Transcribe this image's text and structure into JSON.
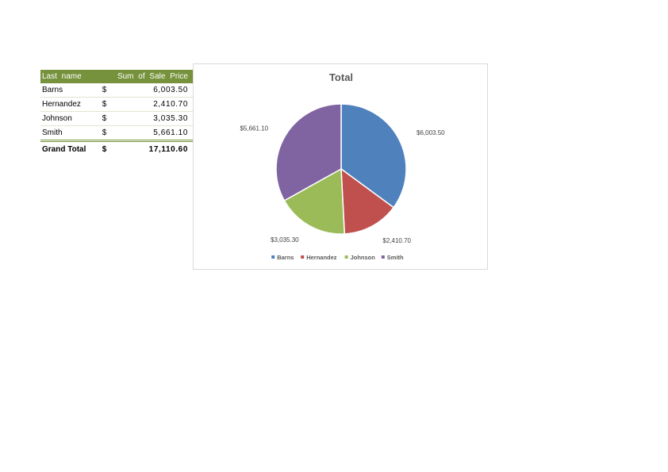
{
  "pivot_table": {
    "header_last_name": "Last name",
    "header_sum": "Sum of Sale Price",
    "rows": [
      {
        "name": "Barns",
        "currency": "$",
        "amount": "6,003.50"
      },
      {
        "name": "Hernandez",
        "currency": "$",
        "amount": "2,410.70"
      },
      {
        "name": "Johnson",
        "currency": "$",
        "amount": "3,035.30"
      },
      {
        "name": "Smith",
        "currency": "$",
        "amount": "5,661.10"
      }
    ],
    "total": {
      "label": "Grand Total",
      "currency": "$",
      "amount": "17,110.60"
    }
  },
  "chart_data": {
    "type": "pie",
    "title": "Total",
    "categories": [
      "Barns",
      "Hernandez",
      "Johnson",
      "Smith"
    ],
    "values": [
      6003.5,
      2410.7,
      3035.3,
      5661.1
    ],
    "data_labels": [
      "$6,003.50",
      "$2,410.70",
      "$3,035.30",
      "$5,661.10"
    ],
    "colors": [
      "#4f81bd",
      "#c0504d",
      "#9bbb59",
      "#8064a2"
    ],
    "legend_position": "bottom"
  }
}
